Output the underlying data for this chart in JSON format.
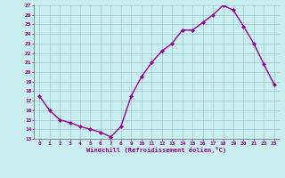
{
  "x": [
    0,
    1,
    2,
    3,
    4,
    5,
    6,
    7,
    8,
    9,
    10,
    11,
    12,
    13,
    14,
    15,
    16,
    17,
    18,
    19,
    20,
    21,
    22,
    23
  ],
  "y": [
    17.5,
    16.0,
    15.0,
    14.7,
    14.3,
    14.0,
    13.7,
    13.2,
    14.3,
    17.5,
    19.5,
    21.0,
    22.2,
    23.0,
    24.4,
    24.4,
    25.2,
    26.0,
    27.0,
    26.5,
    24.8,
    23.0,
    20.8,
    18.7
  ],
  "line_color": "#990099",
  "marker": "D",
  "markersize": 2,
  "linewidth": 1.0,
  "xlim": [
    -0.5,
    23.5
  ],
  "ylim": [
    13,
    27
  ],
  "yticks": [
    13,
    14,
    15,
    16,
    17,
    18,
    19,
    20,
    21,
    22,
    23,
    24,
    25,
    26,
    27
  ],
  "xticks": [
    0,
    1,
    2,
    3,
    4,
    5,
    6,
    7,
    8,
    9,
    10,
    11,
    12,
    13,
    14,
    15,
    16,
    17,
    18,
    19,
    20,
    21,
    22,
    23
  ],
  "xlabel": "Windchill (Refroidissement éolien,°C)",
  "background_color": "#c8eef0",
  "grid_color": "#99bbcc",
  "tick_color": "#990099",
  "label_color": "#990099",
  "spine_color": "#666666"
}
